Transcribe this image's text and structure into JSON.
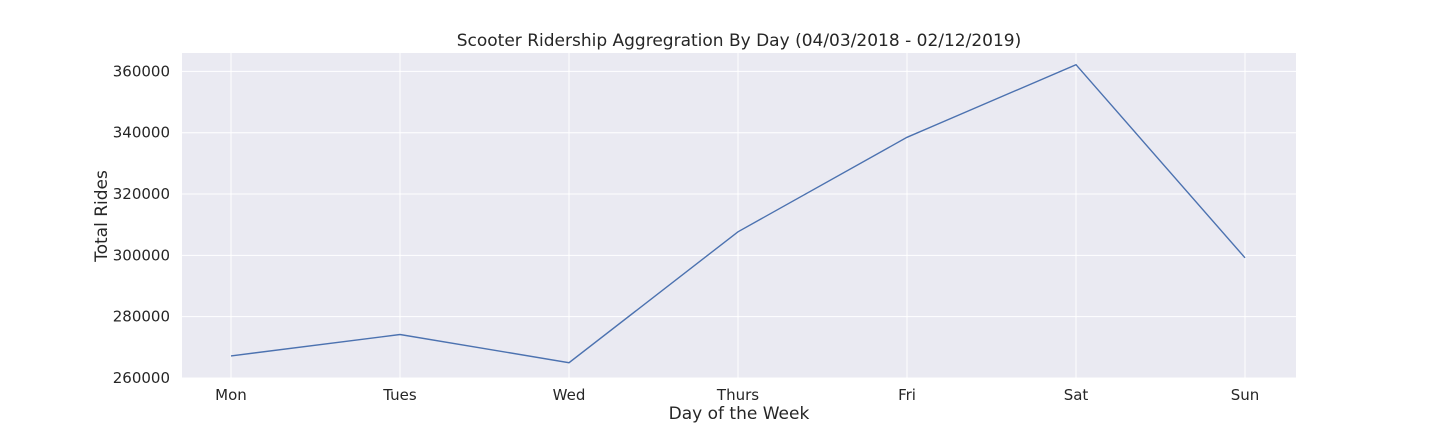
{
  "chart_data": {
    "type": "line",
    "title": "Scooter Ridership Aggregration By Day (04/03/2018 - 02/12/2019)",
    "xlabel": "Day of the Week",
    "ylabel": "Total Rides",
    "categories": [
      "Mon",
      "Tues",
      "Wed",
      "Thurs",
      "Fri",
      "Sat",
      "Sun"
    ],
    "series": [
      {
        "values": [
          267200,
          274200,
          265000,
          307700,
          338500,
          362200,
          299200
        ],
        "color": "#4c72b0"
      }
    ],
    "ylim": [
      260000,
      366000
    ],
    "yticks": [
      "260000",
      "280000",
      "300000",
      "320000",
      "340000",
      "360000"
    ],
    "grid": true,
    "background": "#eaeaf2",
    "grid_color": "#ffffff",
    "legend": "none"
  }
}
